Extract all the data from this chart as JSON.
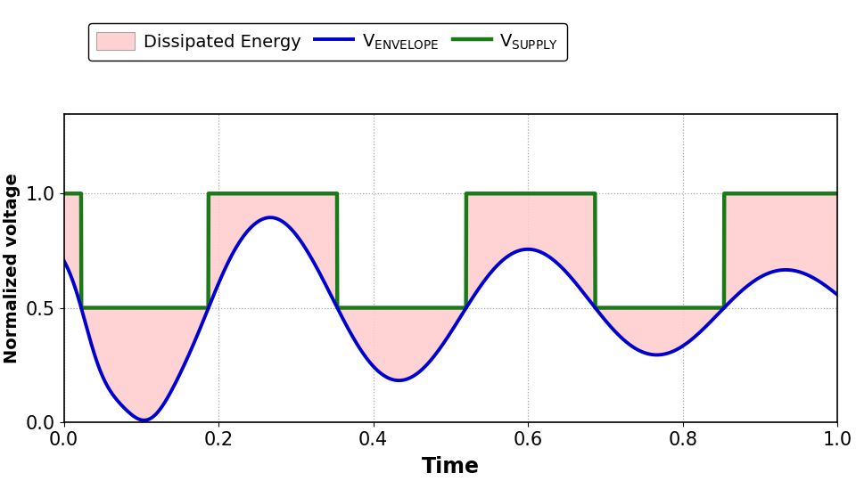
{
  "title": "",
  "xlabel": "Time",
  "ylabel": "Normalized voltage",
  "xlim": [
    0,
    1
  ],
  "ylim": [
    0,
    1.35
  ],
  "yticks": [
    0,
    0.5,
    1
  ],
  "xticks": [
    0,
    0.2,
    0.4,
    0.6,
    0.8,
    1.0
  ],
  "envelope_color": "#0000CC",
  "supply_color": "#1a7a1a",
  "fill_color": "#ffcccc",
  "fill_alpha": 0.85,
  "envelope_lw": 2.8,
  "supply_lw": 3.2,
  "legend_patch_label": "Dissipated Energy",
  "n_points": 3000,
  "threshold": 0.5,
  "high_level": 1.0,
  "low_level": 0.5
}
